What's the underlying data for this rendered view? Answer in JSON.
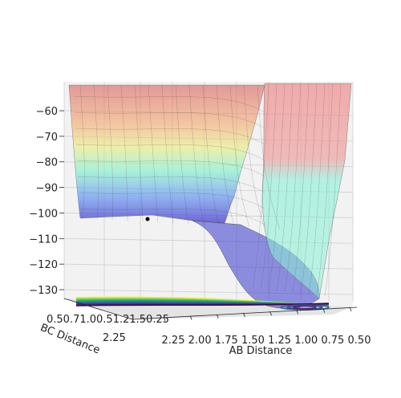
{
  "chart_data": {
    "type": "surface3d",
    "title": "",
    "z_axis": {
      "ticks": [
        -60,
        -70,
        -80,
        -90,
        -100,
        -110,
        -120,
        -130
      ],
      "tick_labels": [
        "−60",
        "−70",
        "−80",
        "−90",
        "−100",
        "−110",
        "−120",
        "−130"
      ]
    },
    "x_axis": {
      "label": "AB Distance",
      "ticks": [
        2.25,
        2.0,
        1.75,
        1.5,
        1.25,
        1.0,
        0.75,
        0.5
      ],
      "tick_labels": [
        "2.25",
        "2.00",
        "1.75",
        "1.50",
        "1.25",
        "1.00",
        "0.75",
        "0.50"
      ]
    },
    "y_axis": {
      "label": "BC Distance",
      "ticks": [
        0.5,
        0.75,
        1.0,
        1.25,
        1.5,
        1.75,
        2.0,
        2.25
      ],
      "tick_labels_overlapping": "0.50.71.00.51.21.50.25",
      "tick_labels": [
        "1.75",
        "2.00",
        "2.25"
      ]
    },
    "surface_colormap": "jet",
    "contour_colormap": "viridis",
    "grid": true,
    "marked_point": {
      "label": "",
      "color": "#000000"
    }
  }
}
